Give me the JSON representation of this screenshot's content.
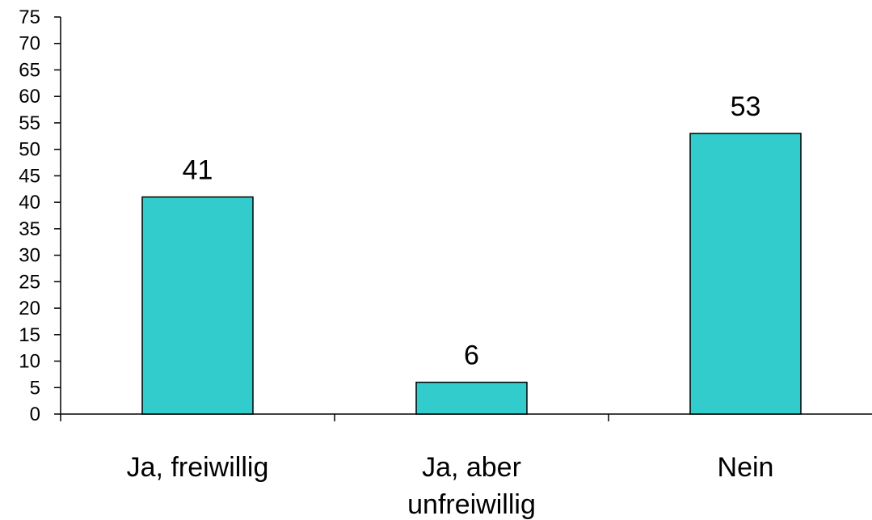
{
  "chart_data": {
    "type": "bar",
    "categories": [
      [
        "Ja, freiwillig"
      ],
      [
        "Ja, aber",
        "unfreiwillig"
      ],
      [
        "Nein"
      ]
    ],
    "values": [
      41,
      6,
      53
    ],
    "data_labels": [
      "41",
      "6",
      "53"
    ],
    "title": "",
    "xlabel": "",
    "ylabel": "",
    "ylim": [
      0,
      75
    ],
    "yticks": [
      0,
      5,
      10,
      15,
      20,
      25,
      30,
      35,
      40,
      45,
      50,
      55,
      60,
      65,
      70,
      75
    ],
    "grid": false,
    "bar_color": "#33CCCC",
    "bar_edge_color": "#000000"
  }
}
